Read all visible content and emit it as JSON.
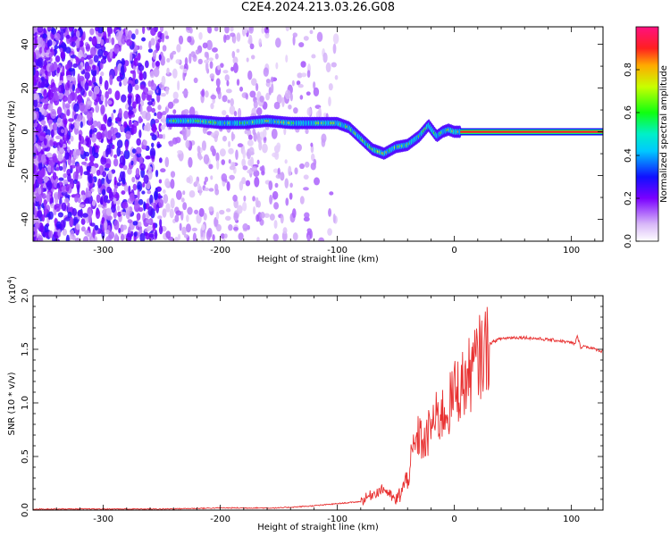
{
  "title": "C2E4.2024.213.03.26.G08",
  "chart_data": [
    {
      "type": "heatmap",
      "name": "spectrogram",
      "xlabel": "Height of straight line (km)",
      "ylabel": "Frequency (Hz)",
      "xlim": [
        -360,
        127
      ],
      "ylim": [
        -50,
        48
      ],
      "xticks": [
        -300,
        -200,
        -100,
        0,
        100
      ],
      "yticks": [
        -40,
        -20,
        0,
        20,
        40
      ],
      "colorbar": {
        "label": "Normalized spectral amplitude",
        "range": [
          0.0,
          1.0
        ],
        "ticks": [
          0.0,
          0.2,
          0.4,
          0.6,
          0.8
        ],
        "tick_labels": [
          "0.0",
          "0.2",
          "0.4",
          "0.6",
          "0.8"
        ],
        "colormap": "rainbow (white-violet-blue-cyan-green-yellow-red-magenta)"
      },
      "ridge": {
        "x": [
          -245,
          -220,
          -200,
          -180,
          -160,
          -140,
          -120,
          -100,
          -90,
          -80,
          -70,
          -60,
          -50,
          -40,
          -30,
          -22,
          -15,
          -10,
          -5,
          0,
          10,
          50,
          100,
          127
        ],
        "frequency": [
          5,
          5,
          4,
          4,
          5,
          4,
          4,
          4,
          2,
          -3,
          -8,
          -10,
          -7,
          -6,
          -2,
          3,
          -2,
          0,
          1,
          0,
          0,
          0,
          0,
          0
        ]
      }
    },
    {
      "type": "line",
      "name": "snr",
      "xlabel": "Height of straight line (km)",
      "ylabel": "SNR (10 * v/v)",
      "y_multiplier_label": "(x10",
      "y_multiplier_exp": "4",
      "xlim": [
        -360,
        127
      ],
      "ylim": [
        0,
        2.0
      ],
      "xticks": [
        -300,
        -200,
        -100,
        0,
        100
      ],
      "yticks": [
        0.0,
        0.5,
        1.0,
        1.5,
        2.0
      ],
      "ytick_labels": [
        "0.0",
        "0.5",
        "1.0",
        "1.5",
        "2.0"
      ],
      "line_color": "#e83030",
      "series": [
        {
          "x": [
            -360,
            -300,
            -250,
            -200,
            -150,
            -120,
            -100,
            -80,
            -70,
            -60,
            -50,
            -45,
            -40,
            -35,
            -30,
            -25,
            -20,
            -15,
            -10,
            -5,
            0,
            5,
            10,
            15,
            20,
            25,
            30,
            35,
            40,
            50,
            60,
            70,
            80,
            90,
            95,
            100,
            103,
            105,
            108,
            110,
            115,
            120,
            127
          ],
          "y": [
            0.01,
            0.01,
            0.01,
            0.02,
            0.02,
            0.04,
            0.06,
            0.08,
            0.15,
            0.2,
            0.08,
            0.18,
            0.3,
            0.55,
            0.7,
            0.6,
            0.8,
            0.85,
            0.9,
            0.95,
            1.1,
            1.15,
            1.2,
            1.3,
            1.4,
            1.48,
            1.55,
            1.58,
            1.6,
            1.61,
            1.61,
            1.6,
            1.59,
            1.58,
            1.57,
            1.56,
            1.55,
            1.62,
            1.52,
            1.53,
            1.52,
            1.5,
            1.48
          ]
        }
      ]
    }
  ]
}
